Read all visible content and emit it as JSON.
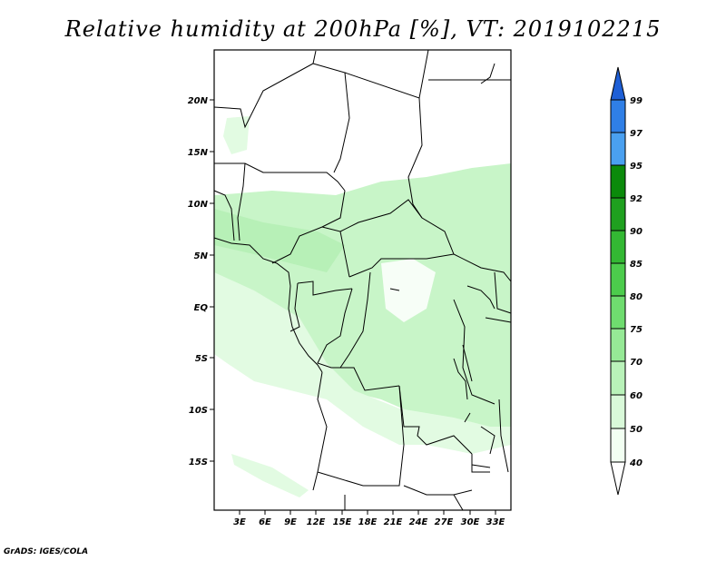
{
  "title": "Relative humidity at 200hPa [%], VT: 2019102215",
  "credit": "GrADS: IGES/COLA",
  "lat_labels": [
    "20N",
    "15N",
    "10N",
    "5N",
    "EQ",
    "5S",
    "10S",
    "15S"
  ],
  "lon_labels": [
    "3E",
    "6E",
    "9E",
    "12E",
    "15E",
    "18E",
    "21E",
    "24E",
    "27E",
    "30E",
    "33E"
  ],
  "legend": {
    "labels": [
      "99",
      "97",
      "95",
      "92",
      "90",
      "85",
      "80",
      "75",
      "70",
      "60",
      "50",
      "40"
    ],
    "colors": [
      "#1e5fd6",
      "#2f7fe6",
      "#4aa0f0",
      "#0b8a0b",
      "#1fa01f",
      "#33b833",
      "#4ccc4c",
      "#6fdc6f",
      "#96e996",
      "#b9f2b9",
      "#d9f9d9",
      "#f2fff2"
    ]
  },
  "colors": {
    "fill_light": "#c8f5c8",
    "fill_mid": "#a6eba6",
    "fill_lightest": "#e2fbe2"
  }
}
